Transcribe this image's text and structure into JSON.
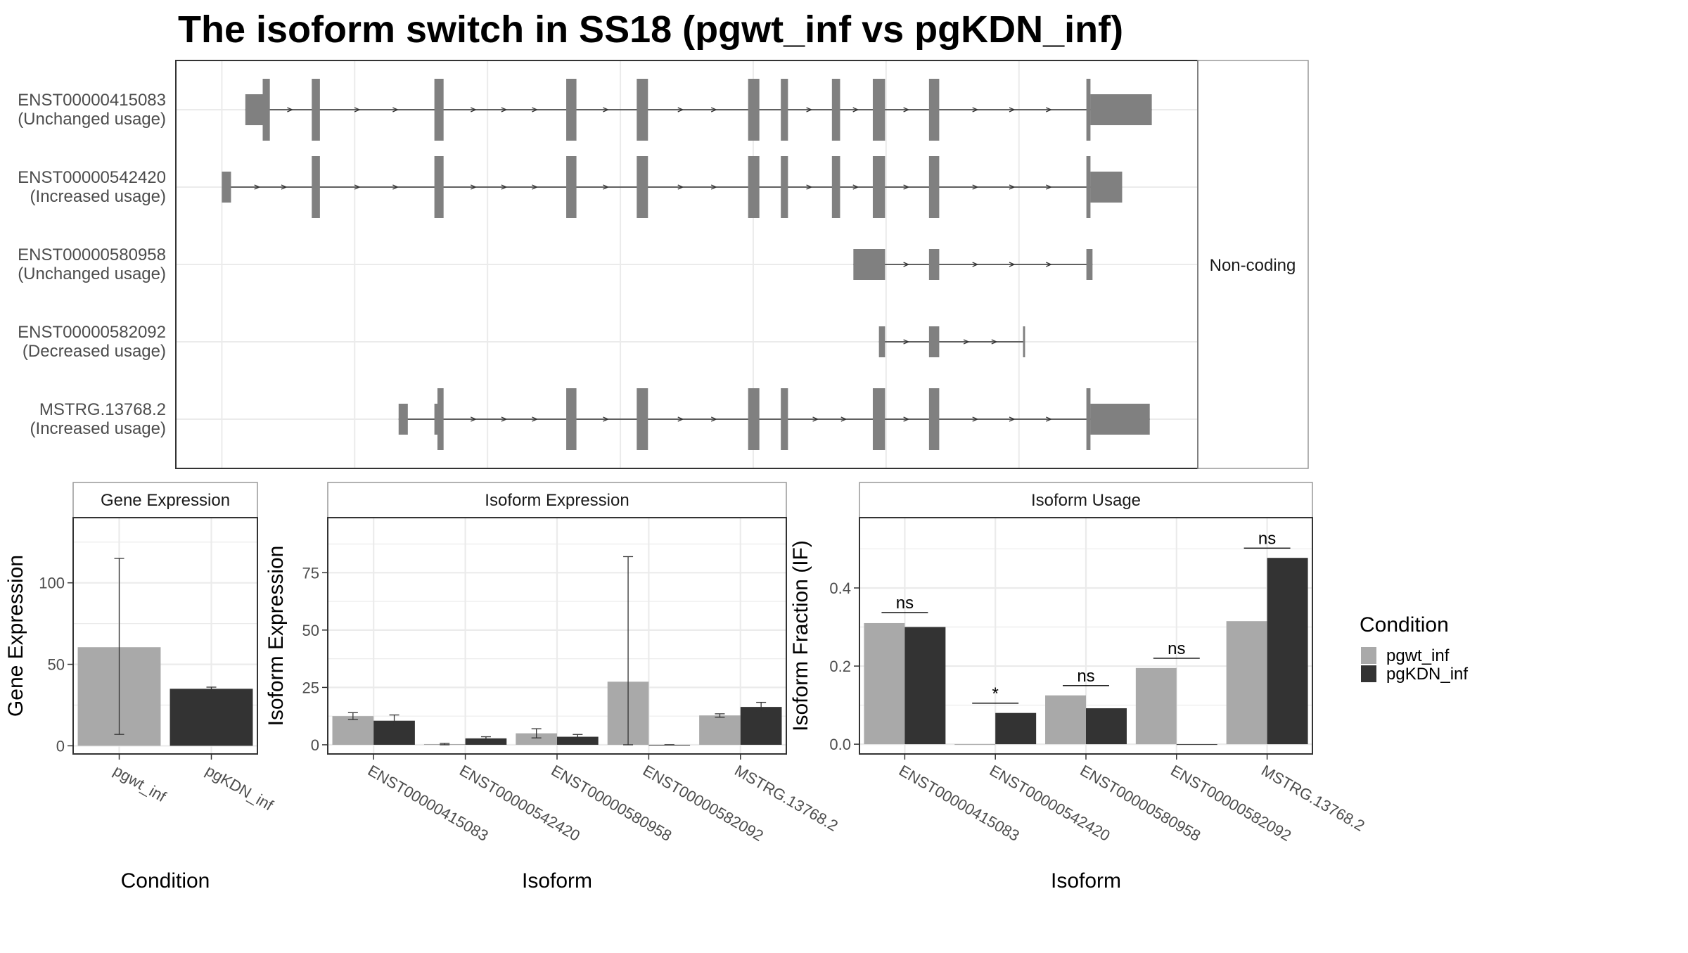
{
  "title": "The isoform switch in SS18 (pgwt_inf vs pgKDN_inf)",
  "colors": {
    "pgwt_inf": "#a9a9a9",
    "pgKDN_inf": "#333333",
    "exon": "#808080",
    "grid": "#ebebeb",
    "panel_border": "#333333",
    "strip_border": "#999999"
  },
  "structure": {
    "facet_label": "Non-coding",
    "isoforms": [
      {
        "id": "ENST00000415083",
        "usage": "(Unchanged usage)",
        "exons": [
          [
            0.068,
            0.085,
            "utr"
          ],
          [
            0.085,
            0.092,
            "cds"
          ],
          [
            0.133,
            0.141,
            "cds"
          ],
          [
            0.253,
            0.262,
            "cds"
          ],
          [
            0.382,
            0.392,
            "cds"
          ],
          [
            0.451,
            0.462,
            "cds"
          ],
          [
            0.56,
            0.571,
            "cds"
          ],
          [
            0.592,
            0.599,
            "cds"
          ],
          [
            0.642,
            0.65,
            "cds"
          ],
          [
            0.682,
            0.694,
            "cds"
          ],
          [
            0.737,
            0.747,
            "cds"
          ],
          [
            0.891,
            0.895,
            "cds"
          ],
          [
            0.895,
            0.955,
            "utr"
          ]
        ]
      },
      {
        "id": "ENST00000542420",
        "usage": "(Increased usage)",
        "exons": [
          [
            0.045,
            0.054,
            "utr"
          ],
          [
            0.133,
            0.141,
            "cds"
          ],
          [
            0.253,
            0.262,
            "cds"
          ],
          [
            0.382,
            0.392,
            "cds"
          ],
          [
            0.451,
            0.462,
            "cds"
          ],
          [
            0.56,
            0.571,
            "cds"
          ],
          [
            0.592,
            0.599,
            "cds"
          ],
          [
            0.642,
            0.65,
            "cds"
          ],
          [
            0.682,
            0.694,
            "cds"
          ],
          [
            0.737,
            0.747,
            "cds"
          ],
          [
            0.891,
            0.895,
            "cds"
          ],
          [
            0.895,
            0.926,
            "utr"
          ]
        ]
      },
      {
        "id": "ENST00000580958",
        "usage": "(Unchanged usage)",
        "exons": [
          [
            0.663,
            0.694,
            "utr"
          ],
          [
            0.737,
            0.747,
            "utr"
          ],
          [
            0.891,
            0.897,
            "utr"
          ]
        ]
      },
      {
        "id": "ENST00000582092",
        "usage": "(Decreased usage)",
        "exons": [
          [
            0.688,
            0.694,
            "utr"
          ],
          [
            0.737,
            0.747,
            "utr"
          ],
          [
            0.829,
            0.831,
            "utr"
          ]
        ]
      },
      {
        "id": "MSTRG.13768.2",
        "usage": "(Increased usage)",
        "exons": [
          [
            0.218,
            0.227,
            "utr"
          ],
          [
            0.253,
            0.256,
            "utr"
          ],
          [
            0.256,
            0.262,
            "cds"
          ],
          [
            0.382,
            0.392,
            "cds"
          ],
          [
            0.451,
            0.462,
            "cds"
          ],
          [
            0.56,
            0.571,
            "cds"
          ],
          [
            0.592,
            0.599,
            "cds"
          ],
          [
            0.682,
            0.694,
            "cds"
          ],
          [
            0.737,
            0.747,
            "cds"
          ],
          [
            0.891,
            0.895,
            "cds"
          ],
          [
            0.895,
            0.953,
            "utr"
          ]
        ]
      }
    ]
  },
  "chart_data": [
    {
      "type": "bar",
      "strip": "Gene Expression",
      "xlabel": "Condition",
      "ylabel": "Gene Expression",
      "ylim": [
        -5,
        140
      ],
      "yticks": [
        0,
        50,
        100
      ],
      "categories": [
        "pgwt_inf",
        "pgKDN_inf"
      ],
      "series": [
        {
          "name": "pgwt_inf",
          "values": [
            60.5,
            null
          ],
          "err": [
            [
              7,
              115
            ],
            null
          ]
        },
        {
          "name": "pgKDN_inf",
          "values": [
            null,
            35
          ],
          "err": [
            null,
            [
              34,
              36
            ]
          ]
        }
      ]
    },
    {
      "type": "bar",
      "strip": "Isoform Expression",
      "xlabel": "Isoform",
      "ylabel": "Isoform Expression",
      "ylim": [
        -4,
        99
      ],
      "yticks": [
        0,
        25,
        50,
        75
      ],
      "categories": [
        "ENST00000415083",
        "ENST00000542420",
        "ENST00000580958",
        "ENST00000582092",
        "MSTRG.13768.2"
      ],
      "series": [
        {
          "name": "pgwt_inf",
          "values": [
            12.5,
            0.3,
            5,
            27.5,
            12.8
          ],
          "err": [
            [
              11,
              14
            ],
            [
              0,
              0.6
            ],
            [
              3,
              7
            ],
            [
              0,
              82
            ],
            [
              12,
              13.5
            ]
          ]
        },
        {
          "name": "pgKDN_inf",
          "values": [
            10.5,
            2.8,
            3.5,
            0,
            16.5
          ],
          "err": [
            [
              8,
              13
            ],
            [
              2,
              3.5
            ],
            [
              2.5,
              4.5
            ],
            [
              0,
              0
            ],
            [
              14.5,
              18.5
            ]
          ]
        }
      ]
    },
    {
      "type": "bar",
      "strip": "Isoform Usage",
      "xlabel": "Isoform",
      "ylabel": "Isoform Fraction (IF)",
      "ylim": [
        -0.025,
        0.58
      ],
      "yticks": [
        0.0,
        0.2,
        0.4
      ],
      "tick_labels": [
        "0.0",
        "0.2",
        "0.4"
      ],
      "categories": [
        "ENST00000415083",
        "ENST00000542420",
        "ENST00000580958",
        "ENST00000582092",
        "MSTRG.13768.2"
      ],
      "series": [
        {
          "name": "pgwt_inf",
          "values": [
            0.31,
            0.0,
            0.125,
            0.195,
            0.315
          ]
        },
        {
          "name": "pgKDN_inf",
          "values": [
            0.3,
            0.08,
            0.092,
            0.0,
            0.477
          ]
        }
      ],
      "significance": [
        "ns",
        "*",
        "ns",
        "ns",
        "ns"
      ],
      "sig_y": [
        0.337,
        0.105,
        0.15,
        0.22,
        0.502
      ]
    }
  ],
  "legend": {
    "title": "Condition",
    "entries": [
      "pgwt_inf",
      "pgKDN_inf"
    ]
  }
}
